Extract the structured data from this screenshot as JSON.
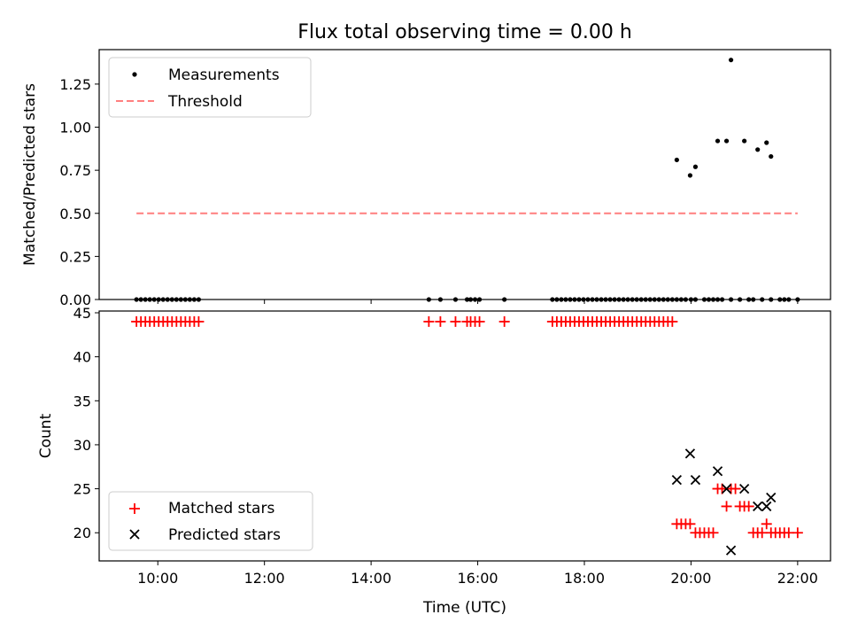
{
  "chart_data": [
    {
      "type": "scatter",
      "title": "Flux total observing time = 0.00 h",
      "xlabel": "",
      "ylabel": "Matched/Predicted stars",
      "ylim": [
        0,
        1.45
      ],
      "y_ticks": [
        "0.00",
        "0.25",
        "0.50",
        "0.75",
        "1.00",
        "1.25"
      ],
      "legend_position": "top-left",
      "legend": [
        "Measurements",
        "Threshold"
      ],
      "colors": {
        "measurements": "#000000",
        "threshold": "#ff7f7f"
      },
      "series": [
        {
          "name": "Measurements",
          "x": [
            "09:36",
            "09:41",
            "09:46",
            "09:51",
            "09:56",
            "10:01",
            "10:06",
            "10:11",
            "10:16",
            "10:21",
            "10:26",
            "10:31",
            "10:36",
            "10:41",
            "10:46",
            "15:05",
            "15:18",
            "15:35",
            "15:48",
            "15:52",
            "15:57",
            "16:02",
            "16:30",
            "17:24",
            "17:29",
            "17:34",
            "17:39",
            "17:44",
            "17:49",
            "17:54",
            "17:59",
            "18:04",
            "18:09",
            "18:14",
            "18:19",
            "18:24",
            "18:29",
            "18:34",
            "18:39",
            "18:44",
            "18:49",
            "18:54",
            "18:59",
            "19:04",
            "19:09",
            "19:14",
            "19:19",
            "19:24",
            "19:29",
            "19:34",
            "19:39",
            "19:44",
            "19:49",
            "19:54",
            "20:00",
            "20:05",
            "20:15",
            "20:20",
            "20:25",
            "20:30",
            "20:35",
            "20:45",
            "20:55",
            "21:05",
            "21:10",
            "21:20",
            "21:30",
            "21:40",
            "21:45",
            "21:50",
            "22:00",
            "19:44",
            "19:59",
            "20:05",
            "20:30",
            "20:40",
            "20:45",
            "21:00",
            "21:15",
            "21:25",
            "21:30"
          ],
          "y": [
            0,
            0,
            0,
            0,
            0,
            0,
            0,
            0,
            0,
            0,
            0,
            0,
            0,
            0,
            0,
            0,
            0,
            0,
            0,
            0,
            0,
            0,
            0,
            0,
            0,
            0,
            0,
            0,
            0,
            0,
            0,
            0,
            0,
            0,
            0,
            0,
            0,
            0,
            0,
            0,
            0,
            0,
            0,
            0,
            0,
            0,
            0,
            0,
            0,
            0,
            0,
            0,
            0,
            0,
            0,
            0,
            0,
            0,
            0,
            0,
            0,
            0,
            0,
            0,
            0,
            0,
            0,
            0,
            0,
            0,
            0,
            0.81,
            0.72,
            0.77,
            0.92,
            0.92,
            1.39,
            0.92,
            0.87,
            0.91,
            0.83
          ]
        },
        {
          "name": "Threshold",
          "style": "dashed",
          "x": [
            "09:36",
            "22:00"
          ],
          "y": [
            0.5,
            0.5
          ]
        }
      ]
    },
    {
      "type": "scatter",
      "title": "",
      "xlabel": "Time (UTC)",
      "ylabel": "Count",
      "ylim": [
        16.8,
        45.2
      ],
      "y_ticks": [
        "20",
        "25",
        "30",
        "35",
        "40",
        "45"
      ],
      "x_ticks": [
        "10:00",
        "12:00",
        "14:00",
        "16:00",
        "18:00",
        "20:00",
        "22:00"
      ],
      "xlim": [
        "08:54",
        "22:37"
      ],
      "legend_position": "bottom-left",
      "legend": [
        "Matched stars",
        "Predicted stars"
      ],
      "colors": {
        "matched": "#ff0000",
        "predicted": "#000000"
      },
      "series": [
        {
          "name": "Matched stars",
          "marker": "+",
          "x": [
            "09:36",
            "09:41",
            "09:46",
            "09:51",
            "09:56",
            "10:01",
            "10:06",
            "10:11",
            "10:16",
            "10:21",
            "10:26",
            "10:31",
            "10:36",
            "10:41",
            "10:46",
            "15:05",
            "15:18",
            "15:35",
            "15:48",
            "15:52",
            "15:57",
            "16:02",
            "16:30",
            "17:24",
            "17:29",
            "17:34",
            "17:39",
            "17:44",
            "17:49",
            "17:54",
            "17:59",
            "18:04",
            "18:09",
            "18:14",
            "18:19",
            "18:24",
            "18:29",
            "18:34",
            "18:39",
            "18:44",
            "18:49",
            "18:54",
            "18:59",
            "19:04",
            "19:09",
            "19:14",
            "19:19",
            "19:24",
            "19:29",
            "19:34",
            "19:39",
            "19:44",
            "19:49",
            "19:54",
            "19:59",
            "20:05",
            "20:10",
            "20:15",
            "20:20",
            "20:25",
            "20:30",
            "20:35",
            "20:40",
            "20:45",
            "20:50",
            "20:55",
            "21:00",
            "21:05",
            "21:10",
            "21:15",
            "21:20",
            "21:25",
            "21:30",
            "21:35",
            "21:40",
            "21:45",
            "21:50",
            "22:00"
          ],
          "y": [
            44,
            44,
            44,
            44,
            44,
            44,
            44,
            44,
            44,
            44,
            44,
            44,
            44,
            44,
            44,
            44,
            44,
            44,
            44,
            44,
            44,
            44,
            44,
            44,
            44,
            44,
            44,
            44,
            44,
            44,
            44,
            44,
            44,
            44,
            44,
            44,
            44,
            44,
            44,
            44,
            44,
            44,
            44,
            44,
            44,
            44,
            44,
            44,
            44,
            44,
            44,
            21,
            21,
            21,
            21,
            20,
            20,
            20,
            20,
            20,
            25,
            25,
            23,
            25,
            25,
            23,
            23,
            23,
            20,
            20,
            20,
            21,
            20,
            20,
            20,
            20,
            20,
            20
          ]
        },
        {
          "name": "Predicted stars",
          "marker": "x",
          "x": [
            "19:44",
            "19:59",
            "20:05",
            "20:30",
            "20:40",
            "20:45",
            "21:00",
            "21:15",
            "21:25",
            "21:30"
          ],
          "y": [
            26,
            29,
            26,
            27,
            25,
            18,
            25,
            23,
            23,
            24
          ]
        }
      ]
    }
  ]
}
